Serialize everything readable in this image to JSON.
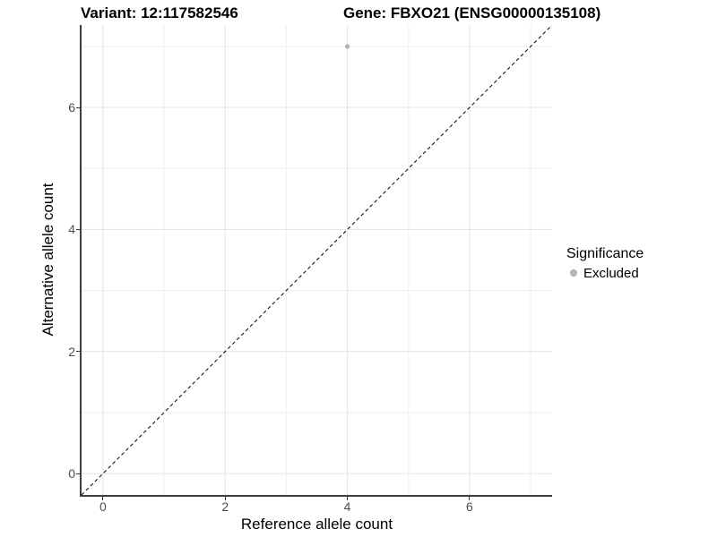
{
  "header": {
    "variant_title": "Variant: 12:117582546",
    "gene_title": "Gene: FBXO21 (ENSG00000135108)"
  },
  "chart_data": {
    "type": "scatter",
    "xlabel": "Reference allele count",
    "ylabel": "Alternative allele count",
    "xlim": [
      -0.35,
      7.35
    ],
    "ylim": [
      -0.35,
      7.35
    ],
    "x_major_ticks": [
      0,
      2,
      4,
      6
    ],
    "y_major_ticks": [
      0,
      2,
      4,
      6
    ],
    "x_minor_ticks": [
      1,
      3,
      5,
      7
    ],
    "y_minor_ticks": [
      1,
      3,
      5,
      7
    ],
    "grid": "major+minor",
    "points": [
      {
        "x": 4,
        "y": 7,
        "significance": "Excluded"
      }
    ],
    "reference_line": {
      "type": "identity",
      "style": "dashed",
      "x1": -0.35,
      "y1": -0.35,
      "x2": 7.35,
      "y2": 7.35
    },
    "legend": {
      "title": "Significance",
      "position": "right",
      "items": [
        {
          "label": "Excluded",
          "color": "#b5b5b5",
          "marker": "circle"
        }
      ]
    },
    "colors": {
      "point": "#b5b5b5",
      "grid_major": "#e3e3e3",
      "grid_minor": "#efefef",
      "axis_line": "#3c3c3c",
      "tick_mark": "#333333",
      "tick_label": "#4d4d4d",
      "dashed_line": "#000000",
      "background": "#ffffff"
    }
  }
}
